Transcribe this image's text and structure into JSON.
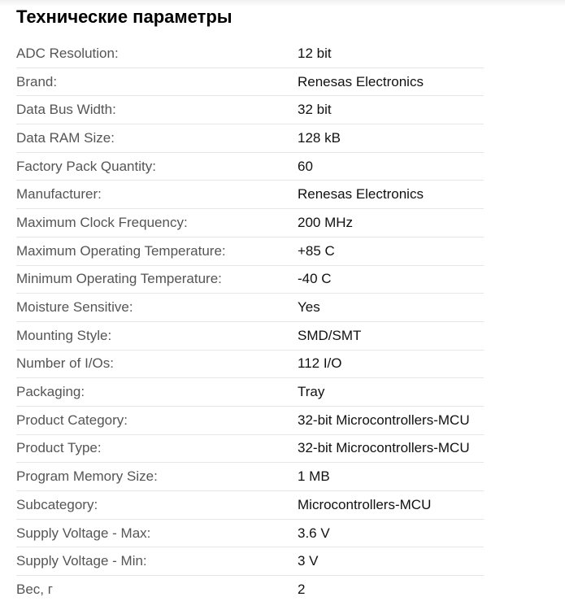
{
  "title": "Технические параметры",
  "specs": [
    {
      "label": "ADC Resolution:",
      "value": "12 bit"
    },
    {
      "label": "Brand:",
      "value": "Renesas Electronics"
    },
    {
      "label": "Data Bus Width:",
      "value": "32 bit"
    },
    {
      "label": "Data RAM Size:",
      "value": "128 kB"
    },
    {
      "label": "Factory Pack Quantity:",
      "value": "60"
    },
    {
      "label": "Manufacturer:",
      "value": "Renesas Electronics"
    },
    {
      "label": "Maximum Clock Frequency:",
      "value": "200 MHz"
    },
    {
      "label": "Maximum Operating Temperature:",
      "value": "+85 C"
    },
    {
      "label": "Minimum Operating Temperature:",
      "value": "-40 C"
    },
    {
      "label": "Moisture Sensitive:",
      "value": "Yes"
    },
    {
      "label": "Mounting Style:",
      "value": "SMD/SMT"
    },
    {
      "label": "Number of I/Os:",
      "value": "112 I/O"
    },
    {
      "label": "Packaging:",
      "value": "Tray"
    },
    {
      "label": "Product Category:",
      "value": "32-bit Microcontrollers-MCU"
    },
    {
      "label": "Product Type:",
      "value": "32-bit Microcontrollers-MCU"
    },
    {
      "label": "Program Memory Size:",
      "value": "1 MB"
    },
    {
      "label": "Subcategory:",
      "value": "Microcontrollers-MCU"
    },
    {
      "label": "Supply Voltage - Max:",
      "value": "3.6 V"
    },
    {
      "label": "Supply Voltage - Min:",
      "value": "3 V"
    },
    {
      "label": "Вес, г",
      "value": "2"
    }
  ]
}
